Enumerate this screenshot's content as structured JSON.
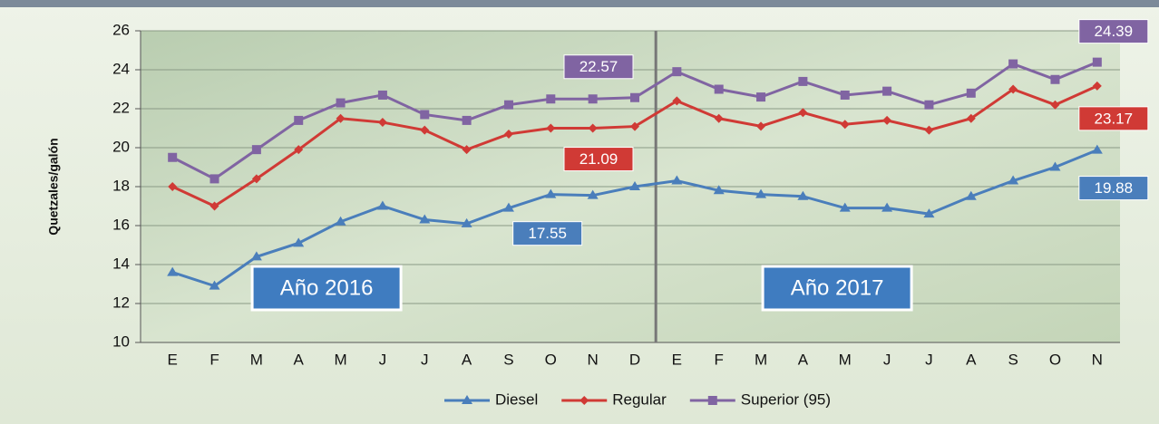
{
  "chart_data": {
    "type": "line",
    "y_label": "Quetzales/galón",
    "categories": [
      "E",
      "F",
      "M",
      "A",
      "M",
      "J",
      "J",
      "A",
      "S",
      "O",
      "N",
      "D",
      "E",
      "F",
      "M",
      "A",
      "M",
      "J",
      "J",
      "A",
      "S",
      "O",
      "N"
    ],
    "series": [
      {
        "name": "Diesel",
        "color": "#4a7ebb",
        "values": [
          13.6,
          12.9,
          14.4,
          15.1,
          16.2,
          17.0,
          16.3,
          16.1,
          16.9,
          17.6,
          17.55,
          18.0,
          18.3,
          17.8,
          17.6,
          17.5,
          16.9,
          16.9,
          16.6,
          17.5,
          18.3,
          19.0,
          19.88
        ],
        "value_labels": [
          null,
          null,
          null,
          null,
          null,
          null,
          null,
          null,
          null,
          null,
          "17.55",
          null,
          null,
          null,
          null,
          null,
          null,
          null,
          null,
          null,
          null,
          null,
          "19.88"
        ]
      },
      {
        "name": "Regular",
        "color": "#d03a35",
        "values": [
          18.0,
          17.0,
          18.4,
          19.9,
          21.5,
          21.3,
          20.9,
          19.9,
          20.7,
          21.0,
          21.0,
          21.09,
          22.4,
          21.5,
          21.1,
          21.8,
          21.2,
          21.4,
          20.9,
          21.5,
          23.0,
          22.2,
          23.17
        ],
        "value_labels": [
          null,
          null,
          null,
          null,
          null,
          null,
          null,
          null,
          null,
          null,
          null,
          "21.09",
          null,
          null,
          null,
          null,
          null,
          null,
          null,
          null,
          null,
          null,
          "23.17"
        ]
      },
      {
        "name": "Superior (95)",
        "color": "#8064a2",
        "values": [
          19.5,
          18.4,
          19.9,
          21.4,
          22.3,
          22.7,
          21.7,
          21.4,
          22.2,
          22.5,
          22.5,
          22.57,
          23.9,
          23.0,
          22.6,
          23.4,
          22.7,
          22.9,
          22.2,
          22.8,
          24.3,
          23.5,
          24.39
        ],
        "value_labels": [
          null,
          null,
          null,
          null,
          null,
          null,
          null,
          null,
          null,
          null,
          null,
          "22.57",
          null,
          null,
          null,
          null,
          null,
          null,
          null,
          null,
          null,
          null,
          "24.39"
        ]
      }
    ],
    "annotations": [
      "Año 2016",
      "Año 2017"
    ],
    "ylim": [
      10,
      26
    ],
    "yticks": [
      10,
      12,
      14,
      16,
      18,
      20,
      22,
      24,
      26
    ],
    "grid": true
  }
}
